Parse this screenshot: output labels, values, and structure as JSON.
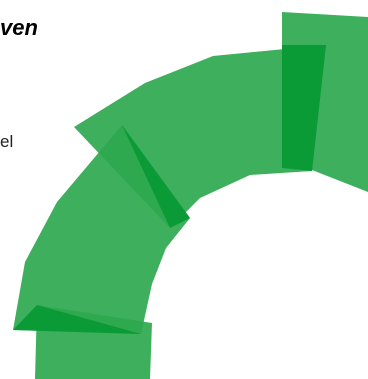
{
  "heading": "ven",
  "body_text": "el",
  "colors": {
    "segment": "#2EA84F",
    "overlap": "#0A9A36",
    "background": "#FFFFFF",
    "text": "#000000"
  },
  "graphic": {
    "icon": "green-segmented-ring-icon"
  }
}
